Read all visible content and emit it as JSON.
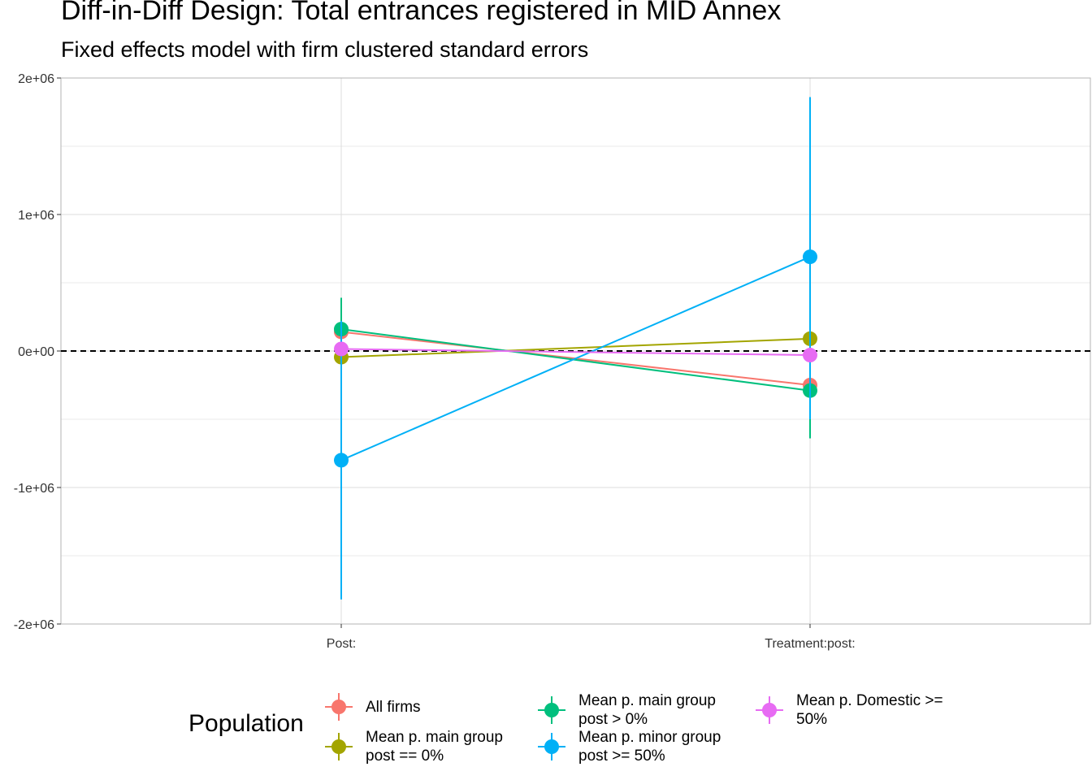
{
  "chart_data": {
    "type": "scatter",
    "title": "Diff-in-Diff Design: Total entrances registered in MID Annex",
    "subtitle": "Fixed effects model with firm clustered standard errors",
    "xlabel": "",
    "ylabel": "",
    "categories": [
      "Post:",
      "Treatment:post:"
    ],
    "ylim": [
      -2000000,
      2000000
    ],
    "y_ticks": [
      -2000000,
      -1000000,
      0,
      1000000,
      2000000
    ],
    "y_tick_labels": [
      "-2e+06",
      "-1e+06",
      "0e+00",
      "1e+06",
      "2e+06"
    ],
    "reference_line": {
      "y": 0,
      "style": "dashed"
    },
    "grid": true,
    "legend": {
      "title": "Population",
      "position": "bottom"
    },
    "series": [
      {
        "name": "All firms",
        "color": "#F8766D",
        "values": [
          140000,
          -250000
        ],
        "lower": [
          100000,
          -280000
        ],
        "upper": [
          180000,
          -220000
        ]
      },
      {
        "name": "Mean p. main group post == 0%",
        "color": "#A3A500",
        "values": [
          -45000,
          90000
        ],
        "lower": [
          -80000,
          60000
        ],
        "upper": [
          -10000,
          120000
        ]
      },
      {
        "name": "Mean p. main group post > 0%",
        "color": "#00BF7D",
        "values": [
          160000,
          -290000
        ],
        "lower": [
          -80000,
          -640000
        ],
        "upper": [
          390000,
          60000
        ]
      },
      {
        "name": "Mean p. minor group post >= 50%",
        "color": "#00B0F6",
        "values": [
          -800000,
          690000
        ],
        "lower": [
          -1820000,
          -500000
        ],
        "upper": [
          220000,
          1860000
        ]
      },
      {
        "name": "Mean p. Domestic >= 50%",
        "color": "#E76BF3",
        "values": [
          15000,
          -30000
        ],
        "lower": [
          -20000,
          -60000
        ],
        "upper": [
          50000,
          0
        ]
      }
    ]
  }
}
